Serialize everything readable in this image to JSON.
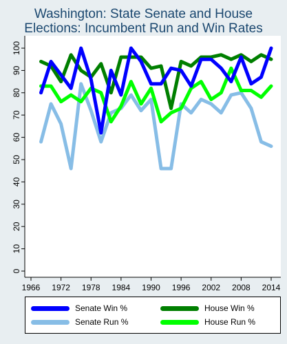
{
  "chart_data": {
    "type": "line",
    "title_lines": [
      "Washington: State Senate and House",
      "Elections: Incumbent Run and Win Rates"
    ],
    "xlabel": "",
    "ylabel": "",
    "x": [
      1968,
      1970,
      1972,
      1974,
      1976,
      1978,
      1980,
      1982,
      1984,
      1986,
      1988,
      1990,
      1992,
      1994,
      1996,
      1998,
      2000,
      2002,
      2004,
      2006,
      2008,
      2010,
      2012,
      2014
    ],
    "xticks": [
      "1966",
      "1972",
      "1978",
      "1984",
      "1990",
      "1996",
      "2002",
      "2008",
      "2014"
    ],
    "xlim": [
      1966,
      2014
    ],
    "yticks": [
      "0",
      "10",
      "20",
      "30",
      "40",
      "50",
      "60",
      "70",
      "80",
      "90",
      "100"
    ],
    "ylim": [
      0,
      100
    ],
    "grid": false,
    "series": [
      {
        "name": "Senate Win %",
        "color": "#0000ff",
        "values": [
          80,
          94,
          88,
          82,
          100,
          86,
          62,
          90,
          79,
          100,
          94,
          84,
          84,
          91,
          90,
          83,
          95,
          95,
          91,
          85,
          96,
          84,
          87,
          100
        ]
      },
      {
        "name": "Senate Run %",
        "color": "#87bde6",
        "values": [
          58,
          75,
          66,
          46,
          84,
          72,
          58,
          71,
          73,
          79,
          72,
          77,
          46,
          46,
          75,
          71,
          77,
          75,
          71,
          79,
          80,
          73,
          58,
          56
        ]
      },
      {
        "name": "House Win %",
        "color": "#007f00",
        "values": [
          94,
          92,
          85,
          97,
          90,
          87,
          93,
          80,
          96,
          96,
          96,
          91,
          92,
          73,
          94,
          92,
          96,
          96,
          97,
          95,
          97,
          94,
          97,
          95
        ]
      },
      {
        "name": "House Run %",
        "color": "#00ff00",
        "values": [
          83,
          83,
          76,
          79,
          76,
          82,
          80,
          67,
          74,
          85,
          75,
          82,
          67,
          71,
          73,
          82,
          85,
          77,
          80,
          91,
          81,
          81,
          78,
          83
        ]
      }
    ],
    "legend": {
      "placement": "bottom",
      "entries": [
        "Senate Win %",
        "House Win %",
        "Senate Run %",
        "House Run %"
      ]
    }
  }
}
